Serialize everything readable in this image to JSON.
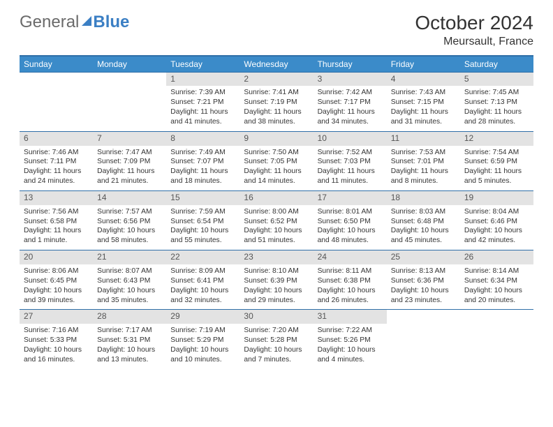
{
  "brand": {
    "general": "General",
    "blue": "Blue"
  },
  "title": "October 2024",
  "location": "Meursault, France",
  "colors": {
    "header_bg": "#3b8bc9",
    "border": "#2f6fa8",
    "daynum_bg": "#e3e3e3",
    "text": "#333333",
    "logo_gray": "#6a6a6a",
    "logo_blue": "#3b7fc4"
  },
  "weekdays": [
    "Sunday",
    "Monday",
    "Tuesday",
    "Wednesday",
    "Thursday",
    "Friday",
    "Saturday"
  ],
  "weeks": [
    [
      {
        "empty": true
      },
      {
        "empty": true
      },
      {
        "day": "1",
        "sunrise": "Sunrise: 7:39 AM",
        "sunset": "Sunset: 7:21 PM",
        "daylight": "Daylight: 11 hours and 41 minutes."
      },
      {
        "day": "2",
        "sunrise": "Sunrise: 7:41 AM",
        "sunset": "Sunset: 7:19 PM",
        "daylight": "Daylight: 11 hours and 38 minutes."
      },
      {
        "day": "3",
        "sunrise": "Sunrise: 7:42 AM",
        "sunset": "Sunset: 7:17 PM",
        "daylight": "Daylight: 11 hours and 34 minutes."
      },
      {
        "day": "4",
        "sunrise": "Sunrise: 7:43 AM",
        "sunset": "Sunset: 7:15 PM",
        "daylight": "Daylight: 11 hours and 31 minutes."
      },
      {
        "day": "5",
        "sunrise": "Sunrise: 7:45 AM",
        "sunset": "Sunset: 7:13 PM",
        "daylight": "Daylight: 11 hours and 28 minutes."
      }
    ],
    [
      {
        "day": "6",
        "sunrise": "Sunrise: 7:46 AM",
        "sunset": "Sunset: 7:11 PM",
        "daylight": "Daylight: 11 hours and 24 minutes."
      },
      {
        "day": "7",
        "sunrise": "Sunrise: 7:47 AM",
        "sunset": "Sunset: 7:09 PM",
        "daylight": "Daylight: 11 hours and 21 minutes."
      },
      {
        "day": "8",
        "sunrise": "Sunrise: 7:49 AM",
        "sunset": "Sunset: 7:07 PM",
        "daylight": "Daylight: 11 hours and 18 minutes."
      },
      {
        "day": "9",
        "sunrise": "Sunrise: 7:50 AM",
        "sunset": "Sunset: 7:05 PM",
        "daylight": "Daylight: 11 hours and 14 minutes."
      },
      {
        "day": "10",
        "sunrise": "Sunrise: 7:52 AM",
        "sunset": "Sunset: 7:03 PM",
        "daylight": "Daylight: 11 hours and 11 minutes."
      },
      {
        "day": "11",
        "sunrise": "Sunrise: 7:53 AM",
        "sunset": "Sunset: 7:01 PM",
        "daylight": "Daylight: 11 hours and 8 minutes."
      },
      {
        "day": "12",
        "sunrise": "Sunrise: 7:54 AM",
        "sunset": "Sunset: 6:59 PM",
        "daylight": "Daylight: 11 hours and 5 minutes."
      }
    ],
    [
      {
        "day": "13",
        "sunrise": "Sunrise: 7:56 AM",
        "sunset": "Sunset: 6:58 PM",
        "daylight": "Daylight: 11 hours and 1 minute."
      },
      {
        "day": "14",
        "sunrise": "Sunrise: 7:57 AM",
        "sunset": "Sunset: 6:56 PM",
        "daylight": "Daylight: 10 hours and 58 minutes."
      },
      {
        "day": "15",
        "sunrise": "Sunrise: 7:59 AM",
        "sunset": "Sunset: 6:54 PM",
        "daylight": "Daylight: 10 hours and 55 minutes."
      },
      {
        "day": "16",
        "sunrise": "Sunrise: 8:00 AM",
        "sunset": "Sunset: 6:52 PM",
        "daylight": "Daylight: 10 hours and 51 minutes."
      },
      {
        "day": "17",
        "sunrise": "Sunrise: 8:01 AM",
        "sunset": "Sunset: 6:50 PM",
        "daylight": "Daylight: 10 hours and 48 minutes."
      },
      {
        "day": "18",
        "sunrise": "Sunrise: 8:03 AM",
        "sunset": "Sunset: 6:48 PM",
        "daylight": "Daylight: 10 hours and 45 minutes."
      },
      {
        "day": "19",
        "sunrise": "Sunrise: 8:04 AM",
        "sunset": "Sunset: 6:46 PM",
        "daylight": "Daylight: 10 hours and 42 minutes."
      }
    ],
    [
      {
        "day": "20",
        "sunrise": "Sunrise: 8:06 AM",
        "sunset": "Sunset: 6:45 PM",
        "daylight": "Daylight: 10 hours and 39 minutes."
      },
      {
        "day": "21",
        "sunrise": "Sunrise: 8:07 AM",
        "sunset": "Sunset: 6:43 PM",
        "daylight": "Daylight: 10 hours and 35 minutes."
      },
      {
        "day": "22",
        "sunrise": "Sunrise: 8:09 AM",
        "sunset": "Sunset: 6:41 PM",
        "daylight": "Daylight: 10 hours and 32 minutes."
      },
      {
        "day": "23",
        "sunrise": "Sunrise: 8:10 AM",
        "sunset": "Sunset: 6:39 PM",
        "daylight": "Daylight: 10 hours and 29 minutes."
      },
      {
        "day": "24",
        "sunrise": "Sunrise: 8:11 AM",
        "sunset": "Sunset: 6:38 PM",
        "daylight": "Daylight: 10 hours and 26 minutes."
      },
      {
        "day": "25",
        "sunrise": "Sunrise: 8:13 AM",
        "sunset": "Sunset: 6:36 PM",
        "daylight": "Daylight: 10 hours and 23 minutes."
      },
      {
        "day": "26",
        "sunrise": "Sunrise: 8:14 AM",
        "sunset": "Sunset: 6:34 PM",
        "daylight": "Daylight: 10 hours and 20 minutes."
      }
    ],
    [
      {
        "day": "27",
        "sunrise": "Sunrise: 7:16 AM",
        "sunset": "Sunset: 5:33 PM",
        "daylight": "Daylight: 10 hours and 16 minutes."
      },
      {
        "day": "28",
        "sunrise": "Sunrise: 7:17 AM",
        "sunset": "Sunset: 5:31 PM",
        "daylight": "Daylight: 10 hours and 13 minutes."
      },
      {
        "day": "29",
        "sunrise": "Sunrise: 7:19 AM",
        "sunset": "Sunset: 5:29 PM",
        "daylight": "Daylight: 10 hours and 10 minutes."
      },
      {
        "day": "30",
        "sunrise": "Sunrise: 7:20 AM",
        "sunset": "Sunset: 5:28 PM",
        "daylight": "Daylight: 10 hours and 7 minutes."
      },
      {
        "day": "31",
        "sunrise": "Sunrise: 7:22 AM",
        "sunset": "Sunset: 5:26 PM",
        "daylight": "Daylight: 10 hours and 4 minutes."
      },
      {
        "empty": true
      },
      {
        "empty": true
      }
    ]
  ]
}
